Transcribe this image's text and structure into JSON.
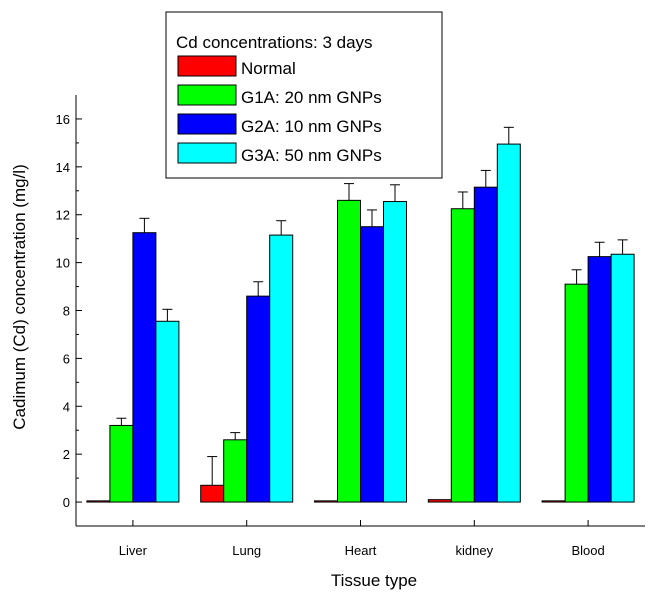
{
  "chart_data": {
    "type": "bar",
    "title": "",
    "xlabel": "Tissue type",
    "ylabel": "Cadimum (Cd) concentration (mg/l)",
    "categories": [
      "Liver",
      "Lung",
      "Heart",
      "kidney",
      "Blood"
    ],
    "ylim": [
      -1,
      17
    ],
    "yticks": [
      0,
      2,
      4,
      6,
      8,
      10,
      12,
      14,
      16
    ],
    "ytick_labels": [
      "0",
      "2",
      "4",
      "6",
      "8",
      "10",
      "12",
      "14",
      "16"
    ],
    "legend": {
      "title": "Cd concentrations: 3 days",
      "placement": "top-center"
    },
    "series": [
      {
        "name": "Normal",
        "color": "#ff0000",
        "values": [
          0.05,
          0.7,
          0.05,
          0.1,
          0.05
        ],
        "errors": [
          0.0,
          1.2,
          0.0,
          0.0,
          0.0
        ]
      },
      {
        "name": "G1A: 20 nm GNPs",
        "color": "#00ff00",
        "values": [
          3.2,
          2.6,
          12.6,
          12.25,
          9.1
        ],
        "errors": [
          0.3,
          0.3,
          0.7,
          0.7,
          0.6
        ]
      },
      {
        "name": "G2A: 10 nm GNPs",
        "color": "#0000ff",
        "values": [
          11.25,
          8.6,
          11.5,
          13.15,
          10.25
        ],
        "errors": [
          0.6,
          0.6,
          0.7,
          0.7,
          0.6
        ]
      },
      {
        "name": "G3A: 50 nm GNPs",
        "color": "#00ffff",
        "values": [
          7.55,
          11.15,
          12.55,
          14.95,
          10.35
        ],
        "errors": [
          0.5,
          0.6,
          0.7,
          0.7,
          0.6
        ]
      }
    ]
  }
}
